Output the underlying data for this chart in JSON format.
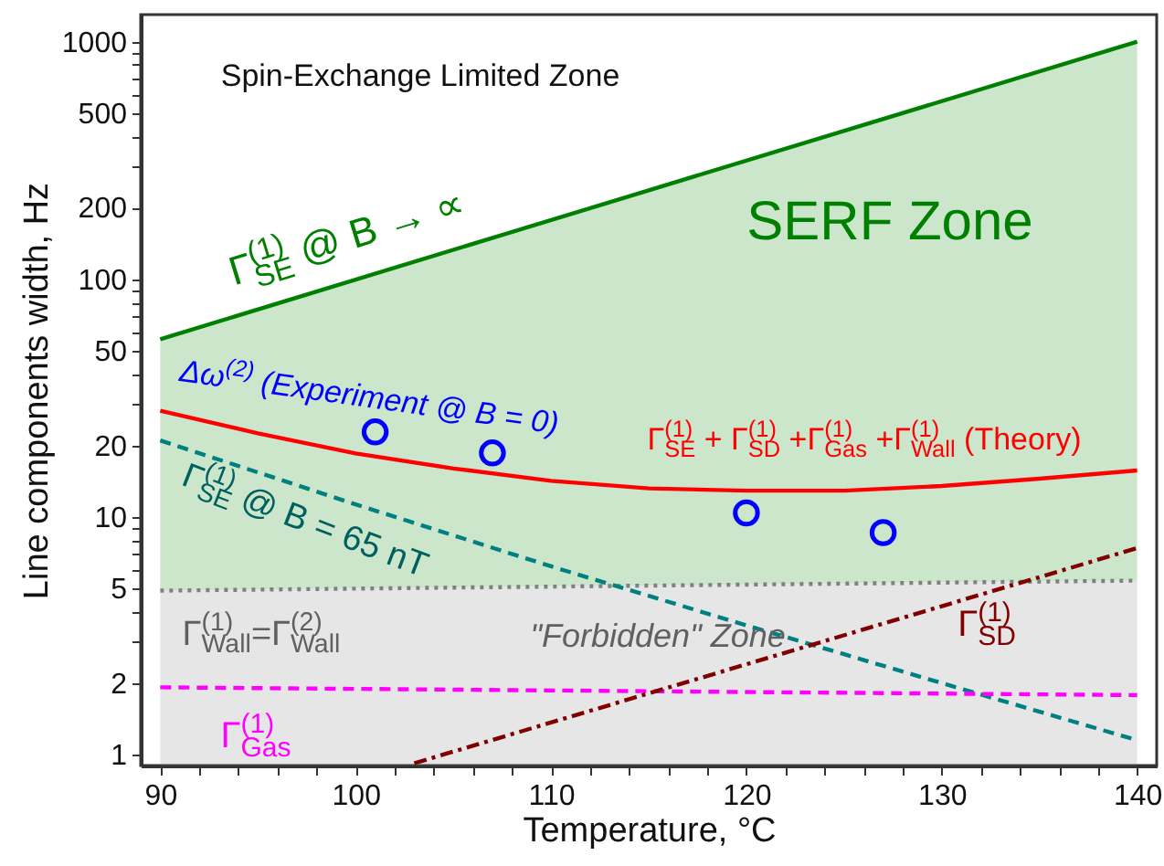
{
  "chart_data": {
    "type": "line",
    "xlabel": "Temperature, °C",
    "ylabel": "Line components width, Hz",
    "log": "y",
    "grid": false,
    "xlim": [
      89,
      141
    ],
    "ylim": [
      0.9,
      1300
    ],
    "xticks": [
      90,
      {
        "value": 92,
        "label": null
      },
      {
        "value": 94,
        "label": null
      },
      {
        "value": 96,
        "label": null
      },
      {
        "value": 98,
        "label": null
      },
      100,
      {
        "value": 102,
        "label": null
      },
      {
        "value": 104,
        "label": null
      },
      {
        "value": 106,
        "label": null
      },
      {
        "value": 108,
        "label": null
      },
      110,
      {
        "value": 112,
        "label": null
      },
      {
        "value": 114,
        "label": null
      },
      {
        "value": 116,
        "label": null
      },
      {
        "value": 118,
        "label": null
      },
      120,
      {
        "value": 122,
        "label": null
      },
      {
        "value": 124,
        "label": null
      },
      {
        "value": 126,
        "label": null
      },
      {
        "value": 128,
        "label": null
      },
      130,
      {
        "value": 132,
        "label": null
      },
      {
        "value": 134,
        "label": null
      },
      {
        "value": 136,
        "label": null
      },
      {
        "value": 138,
        "label": null
      },
      140
    ],
    "yticks": [
      1,
      2,
      {
        "value": 3,
        "label": null
      },
      {
        "value": 4,
        "label": null
      },
      5,
      {
        "value": 6,
        "label": null
      },
      {
        "value": 7,
        "label": null
      },
      {
        "value": 8,
        "label": null
      },
      {
        "value": 9,
        "label": null
      },
      10,
      20,
      {
        "value": 30,
        "label": null
      },
      {
        "value": 40,
        "label": null
      },
      50,
      {
        "value": 60,
        "label": null
      },
      {
        "value": 70,
        "label": null
      },
      {
        "value": 80,
        "label": null
      },
      {
        "value": 90,
        "label": null
      },
      100,
      200,
      {
        "value": 300,
        "label": null
      },
      {
        "value": 400,
        "label": null
      },
      500,
      {
        "value": 600,
        "label": null
      },
      {
        "value": 700,
        "label": null
      },
      {
        "value": 800,
        "label": null
      },
      {
        "value": 900,
        "label": null
      },
      1000
    ],
    "series": [
      {
        "color": "#008000",
        "x": [
          90,
          115,
          140
        ],
        "values": [
          56,
          237,
          1000
        ],
        "lower": [
          4.9,
          5.15,
          5.4
        ],
        "upper": [
          56,
          237,
          1000
        ]
      },
      {
        "color": "#808080",
        "line_style": "dotted",
        "x": [
          90,
          140
        ],
        "values": [
          4.9,
          5.4
        ],
        "lower": [
          0.9,
          0.9
        ],
        "upper": [
          4.9,
          5.4
        ]
      },
      {
        "color": "#ff0000",
        "x": [
          90,
          95,
          100,
          105,
          110,
          115,
          120,
          125,
          130,
          135,
          140
        ],
        "values": [
          28,
          22.5,
          18.5,
          16,
          14.2,
          13.2,
          12.9,
          12.9,
          13.5,
          14.5,
          15.7
        ]
      },
      {
        "color": "#008080",
        "line_style": "dashed",
        "x": [
          90,
          100,
          110,
          120,
          130,
          140
        ],
        "values": [
          21,
          11.3,
          6.2,
          3.5,
          2.0,
          1.15
        ]
      },
      {
        "color": "#ff00ff",
        "line_style": "dashed",
        "x": [
          90,
          140
        ],
        "values": [
          1.92,
          1.78
        ]
      },
      {
        "color": "#800000",
        "line_style": "dashdot",
        "x": [
          103,
          120,
          140
        ],
        "values": [
          0.92,
          2.4,
          7.4
        ]
      },
      {
        "type": "scatter",
        "color": "#0000ff",
        "marker": "circle",
        "x": [
          101,
          107,
          120,
          127
        ],
        "values": [
          22.8,
          18.6,
          10.4,
          8.6
        ]
      }
    ],
    "annotations": [
      "Spin-Exchange Limited Zone",
      "SERF Zone",
      "Γ$_{SE}$$^{(1)}$ @ B → ∝",
      "Δω$^{(2)}$ (Experiment @ B = 0)",
      "Γ$_{SE}$$^{(1)}$ + Γ$_{SD}$$^{(1)}$ +Γ$_{Gas}$$^{(1)}$ +Γ$_{Wall}$$^{(1)}$ (Theory)",
      "Γ$_{SE}$$^{(1)}$ @ B = 65 nT",
      "Γ$_{Wall}$$^{(1)}$=Γ$_{Wall}$$^{(2)}$",
      "\"Forbidden\" Zone",
      "Γ$_{Gas}$$^{(1)}$",
      "Γ$_{SD}$$^{(1)}$"
    ]
  }
}
